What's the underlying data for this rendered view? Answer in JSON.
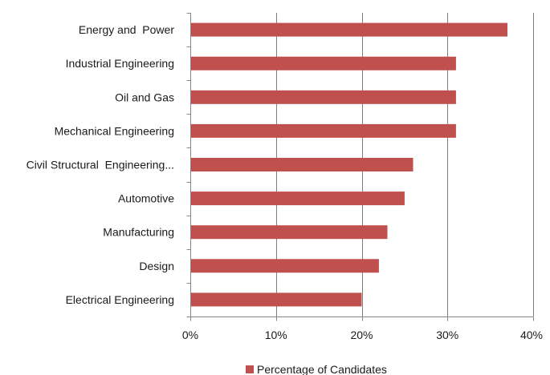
{
  "chart_data": {
    "type": "bar",
    "orientation": "horizontal",
    "categories": [
      "Energy and  Power",
      "Industrial Engineering",
      "Oil and Gas",
      "Mechanical Engineering",
      "Civil Structural  Engineering...",
      "Automotive",
      "Manufacturing",
      "Design",
      "Electrical Engineering"
    ],
    "series": [
      {
        "name": "Percentage of Candidates",
        "values": [
          37,
          31,
          31,
          31,
          26,
          25,
          23,
          22,
          20
        ],
        "color": "#c0504d"
      }
    ],
    "xlim": [
      0,
      40
    ],
    "x_ticks": [
      0,
      10,
      20,
      30,
      40
    ],
    "x_tick_labels": [
      "0%",
      "10%",
      "20%",
      "30%",
      "40%"
    ],
    "grid": "vertical",
    "legend_position": "bottom",
    "gridline_color": "#7f7f7f",
    "axis_color": "#868686"
  }
}
